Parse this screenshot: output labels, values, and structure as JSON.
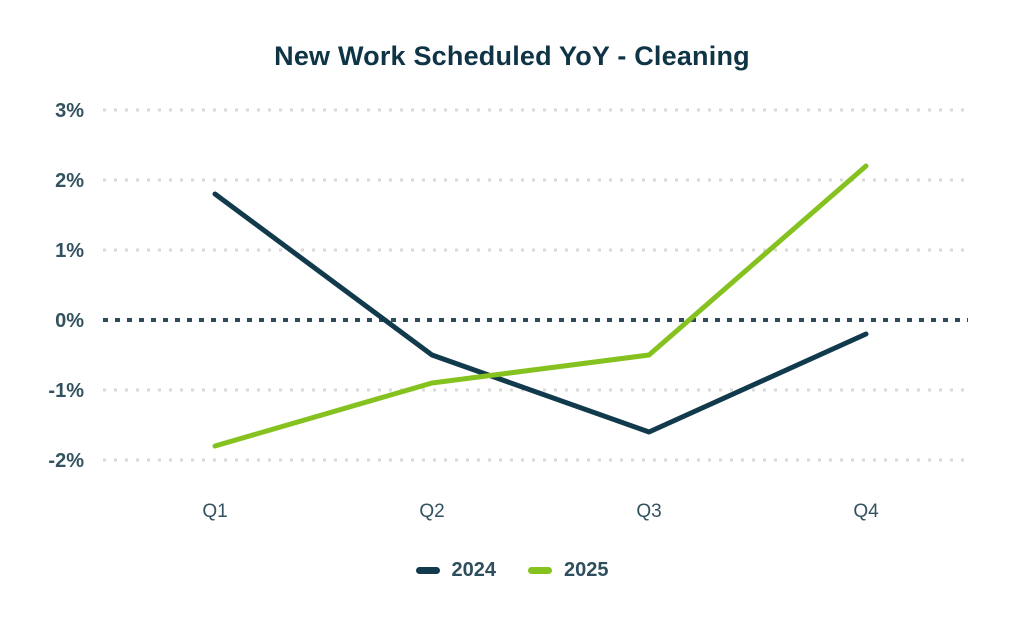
{
  "chart_data": {
    "type": "line",
    "title": "New Work Scheduled YoY - Cleaning",
    "categories": [
      "Q1",
      "Q2",
      "Q3",
      "Q4"
    ],
    "series": [
      {
        "name": "2024",
        "color": "#113b4c",
        "values": [
          1.8,
          -0.5,
          -1.6,
          -0.2
        ]
      },
      {
        "name": "2025",
        "color": "#85c220",
        "values": [
          -1.8,
          -0.9,
          -0.5,
          2.2
        ]
      }
    ],
    "y_ticks": [
      {
        "label": "3%",
        "value": 3,
        "emphasis": false
      },
      {
        "label": "2%",
        "value": 2,
        "emphasis": false
      },
      {
        "label": "1%",
        "value": 1,
        "emphasis": false
      },
      {
        "label": "0%",
        "value": 0,
        "emphasis": true
      },
      {
        "label": "-1%",
        "value": -1,
        "emphasis": false
      },
      {
        "label": "-2%",
        "value": -2,
        "emphasis": false
      }
    ],
    "ylim": [
      -2,
      3
    ],
    "xlabel": "",
    "ylabel": "",
    "grid": "dotted-horizontal",
    "legend_position": "bottom",
    "colors": {
      "title": "#0e3445",
      "tick_label": "#33525f",
      "grid_line": "#d9d9d9",
      "zero_line": "#2b4d5c",
      "background": "#ffffff"
    }
  }
}
